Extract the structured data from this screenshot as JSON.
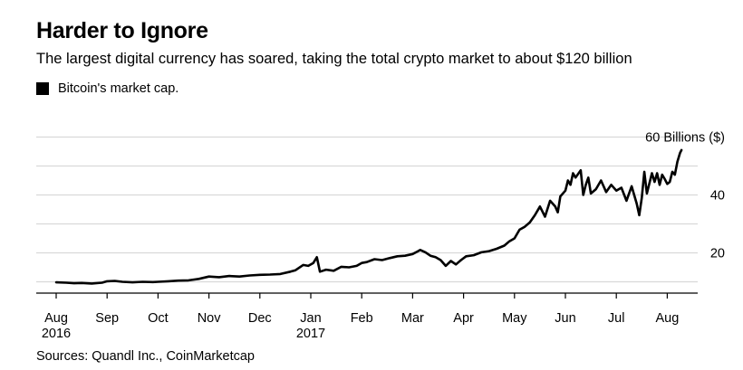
{
  "title": "Harder to Ignore",
  "subtitle": "The largest digital currency has soared, taking the total crypto market to about $120 billion",
  "legend": {
    "label": "Bitcoin's market cap.",
    "color": "#000000"
  },
  "source": "Sources: Quandl Inc., CoinMarketcap",
  "chart_data": {
    "type": "line",
    "title": "Harder to Ignore",
    "ylabel": "60 Billions ($)",
    "xlabel": "",
    "ylim": [
      5,
      60
    ],
    "y_gridlines": [
      10,
      20,
      30,
      40,
      50,
      60
    ],
    "y_tick_labels": [
      {
        "value": 20,
        "label": "20"
      },
      {
        "value": 40,
        "label": "40"
      },
      {
        "value": 60,
        "label": "60 Billions ($)"
      }
    ],
    "xlim": [
      0,
      12.5
    ],
    "x_ticks": [
      {
        "x": 0,
        "label": "Aug",
        "sublabel": "2016"
      },
      {
        "x": 1,
        "label": "Sep",
        "sublabel": ""
      },
      {
        "x": 2,
        "label": "Oct",
        "sublabel": ""
      },
      {
        "x": 3,
        "label": "Nov",
        "sublabel": ""
      },
      {
        "x": 4,
        "label": "Dec",
        "sublabel": ""
      },
      {
        "x": 5,
        "label": "Jan",
        "sublabel": "2017"
      },
      {
        "x": 6,
        "label": "Feb",
        "sublabel": ""
      },
      {
        "x": 7,
        "label": "Mar",
        "sublabel": ""
      },
      {
        "x": 8,
        "label": "Apr",
        "sublabel": ""
      },
      {
        "x": 9,
        "label": "May",
        "sublabel": ""
      },
      {
        "x": 10,
        "label": "Jun",
        "sublabel": ""
      },
      {
        "x": 11,
        "label": "Jul",
        "sublabel": ""
      },
      {
        "x": 12,
        "label": "Aug",
        "sublabel": ""
      }
    ],
    "series": [
      {
        "name": "Bitcoin's market cap.",
        "color": "#000000",
        "x": [
          0,
          0.2,
          0.35,
          0.5,
          0.7,
          0.9,
          1.0,
          1.15,
          1.3,
          1.5,
          1.7,
          1.9,
          2.0,
          2.2,
          2.4,
          2.6,
          2.8,
          3.0,
          3.2,
          3.4,
          3.6,
          3.8,
          4.0,
          4.2,
          4.4,
          4.6,
          4.7,
          4.85,
          4.95,
          5.05,
          5.12,
          5.18,
          5.3,
          5.45,
          5.6,
          5.75,
          5.9,
          6.0,
          6.1,
          6.25,
          6.4,
          6.55,
          6.7,
          6.85,
          7.0,
          7.1,
          7.15,
          7.25,
          7.35,
          7.45,
          7.55,
          7.65,
          7.75,
          7.85,
          7.95,
          8.05,
          8.2,
          8.35,
          8.5,
          8.65,
          8.8,
          8.9,
          9.0,
          9.1,
          9.2,
          9.3,
          9.4,
          9.5,
          9.6,
          9.7,
          9.8,
          9.85,
          9.9,
          10.0,
          10.05,
          10.1,
          10.15,
          10.2,
          10.3,
          10.35,
          10.4,
          10.45,
          10.5,
          10.6,
          10.7,
          10.8,
          10.9,
          11.0,
          11.1,
          11.2,
          11.3,
          11.4,
          11.45,
          11.5,
          11.55,
          11.6,
          11.65,
          11.7,
          11.75,
          11.8,
          11.85,
          11.9,
          11.95,
          12.0,
          12.05,
          12.1,
          12.15,
          12.2,
          12.25,
          12.28
        ],
        "values": [
          9.8,
          9.7,
          9.5,
          9.6,
          9.4,
          9.7,
          10.2,
          10.3,
          10.0,
          9.8,
          10.0,
          9.9,
          10.0,
          10.2,
          10.4,
          10.5,
          11.0,
          11.8,
          11.6,
          12.0,
          11.8,
          12.2,
          12.4,
          12.5,
          12.7,
          13.5,
          14.0,
          15.8,
          15.5,
          16.5,
          18.5,
          13.5,
          14.2,
          13.8,
          15.2,
          15.0,
          15.5,
          16.5,
          16.8,
          17.8,
          17.5,
          18.2,
          18.8,
          19.0,
          19.6,
          20.5,
          21.0,
          20.2,
          19.0,
          18.5,
          17.5,
          15.5,
          17.2,
          16.0,
          17.5,
          18.8,
          19.2,
          20.2,
          20.6,
          21.4,
          22.5,
          24.0,
          25.0,
          28.0,
          29.0,
          30.5,
          33.0,
          36.0,
          32.5,
          38.0,
          36.0,
          34.0,
          39.5,
          41.5,
          45.0,
          43.5,
          47.5,
          46.0,
          48.5,
          40.0,
          43.5,
          46.0,
          40.5,
          42.0,
          45.0,
          41.0,
          43.5,
          41.5,
          42.5,
          38.0,
          43.0,
          37.0,
          33.0,
          39.0,
          48.0,
          40.5,
          44.0,
          47.5,
          44.5,
          47.5,
          43.5,
          47.0,
          45.5,
          43.8,
          44.5,
          48.0,
          47.0,
          51.5,
          54.5,
          55.5
        ]
      }
    ]
  }
}
